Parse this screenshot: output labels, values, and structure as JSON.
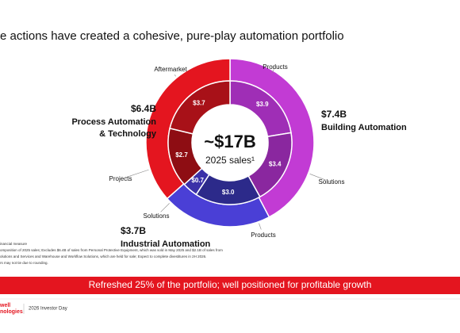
{
  "chart_data": {
    "type": "donut",
    "title": "e actions have created a cohesive, pure-play automation portfolio",
    "center_value": "~$17B",
    "center_label": "2025 sales¹",
    "segments": [
      {
        "name": [
          "Building Automation"
        ],
        "value": 7.4,
        "value_label": "$7.4B",
        "color": "#c23bd4",
        "children": [
          {
            "name": "Products",
            "value": 3.9,
            "value_label": "$3.9",
            "color": "#9f2eb6"
          },
          {
            "name": "Solutions",
            "value": 3.4,
            "value_label": "$3.4",
            "color": "#8a279f"
          }
        ]
      },
      {
        "name": [
          "Industrial Automation"
        ],
        "value": 3.7,
        "value_label": "$3.7B",
        "color": "#4a3fd6",
        "children": [
          {
            "name": "Products",
            "value": 3.0,
            "value_label": "$3.0",
            "color": "#2c2a8a"
          },
          {
            "name": "Solutions",
            "value": 0.7,
            "value_label": "$0.7",
            "color": "#3b31a8"
          }
        ]
      },
      {
        "name": [
          "Process Automation",
          "& Technology"
        ],
        "value": 6.4,
        "value_label": "$6.4B",
        "color": "#e4151f",
        "children": [
          {
            "name": "Projects",
            "value": 2.7,
            "value_label": "$2.7",
            "color": "#8e0d13"
          },
          {
            "name": "Aftermarket",
            "value": 3.7,
            "value_label": "$3.7",
            "color": "#a81118"
          }
        ]
      }
    ]
  },
  "footnotes": [
    "inancial measure",
    "omposition of 2025 sales; Excludes $6.4B of sales from Personal Protective Equipment, which was sold in May 2025 and $2.1B of sales from",
    "olutions and Services and Warehouse and Workflow Solutions, which are held for sale; Expect to complete divestitures in 2H 2026.",
    "rs may not tie due to rounding."
  ],
  "banner": "Refreshed 25% of the portfolio; well positioned for profitable growth",
  "footer": {
    "logo": [
      "well",
      "nologies"
    ],
    "event": "2026 Investor Day"
  }
}
